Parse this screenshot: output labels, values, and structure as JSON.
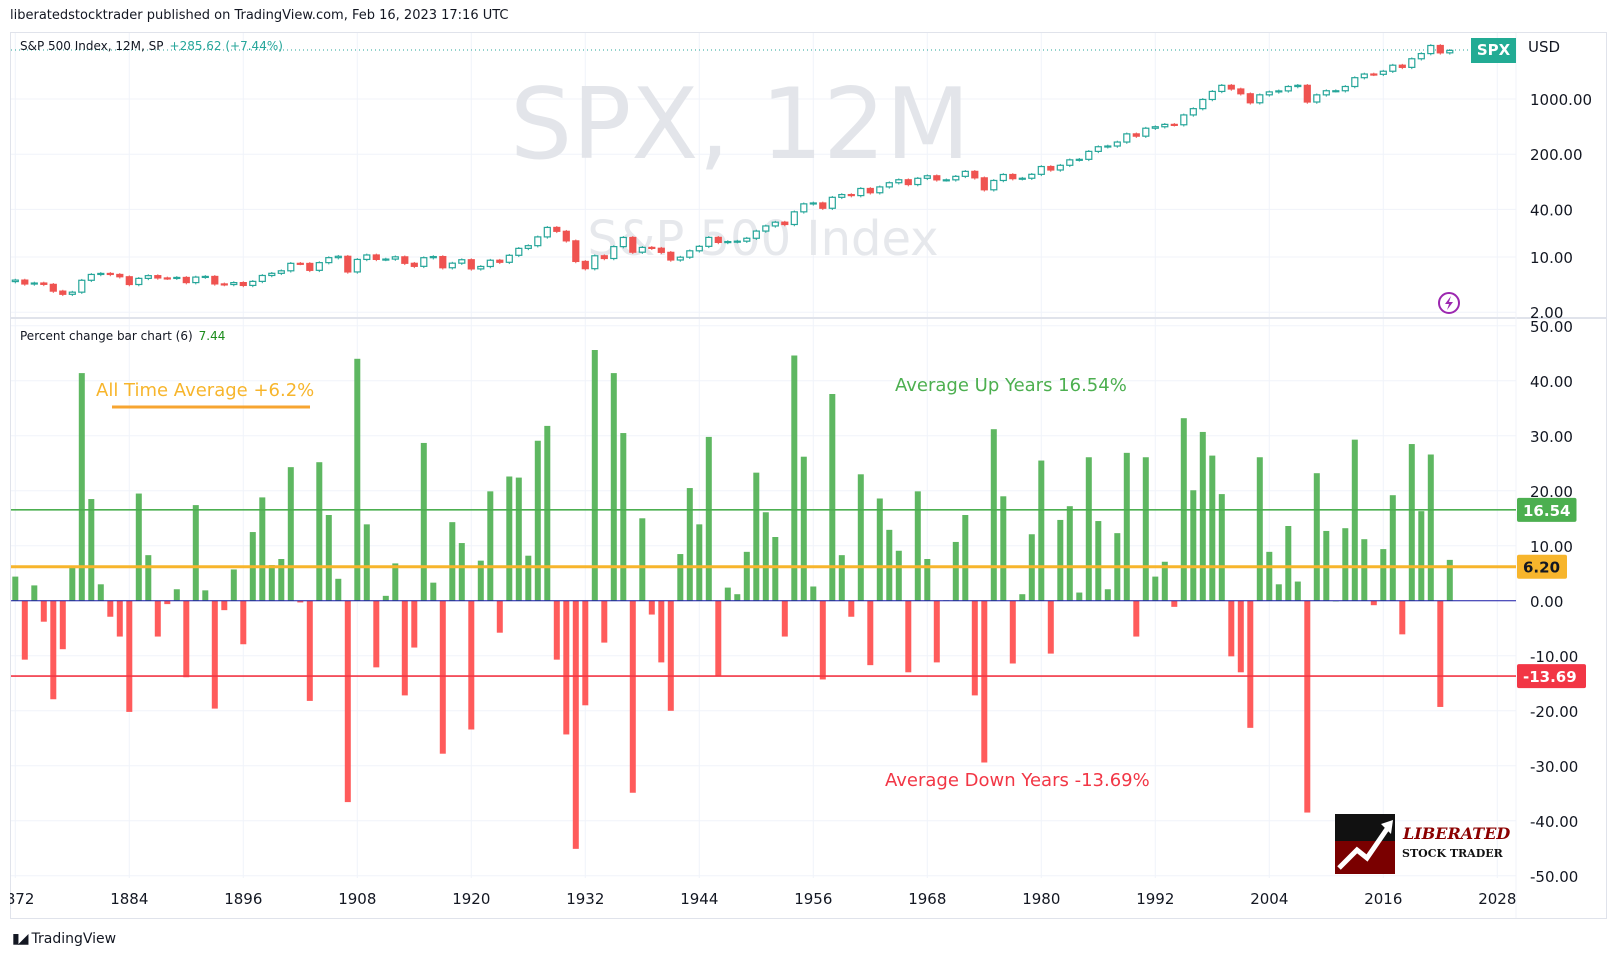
{
  "header": {
    "publisher_line": "liberatedstocktrader published on TradingView.com, Feb 16, 2023 17:16 UTC"
  },
  "legend": {
    "symbol_line": "S&P 500 Index, 12M, SP",
    "change": "+285.62 (+7.44%)",
    "change_value": 285.62,
    "change_pct": 7.44
  },
  "watermark": {
    "symbol": "SPX, 12M",
    "name": "S&P 500 Index"
  },
  "price_axis": {
    "currency": "USD",
    "ticker_badge": "SPX"
  },
  "indicator": {
    "title": "Percent change bar chart (6)",
    "value": "7.44"
  },
  "annotations": {
    "all_time": "All Time Average +6.2%",
    "up": "Average Up Years 16.54%",
    "down": "Average Down Years -13.69%"
  },
  "logo": {
    "line1": "LIBERATED",
    "line2": "STOCK TRADER"
  },
  "footer": {
    "brand": "TradingView"
  },
  "colors": {
    "up_candle": "#26a69a",
    "down_candle": "#ef5350",
    "up_bar": "#4caf50",
    "down_bar": "#ff5252",
    "avg_up": "#4caf50",
    "avg_all": "#f7b52c",
    "avg_down": "#f23645",
    "zero_line": "#1a1aa6",
    "alert_icon": "#9c27b0"
  },
  "chart_data": [
    {
      "type": "candlestick",
      "title": "S&P 500 Index, 12M, SP",
      "yscale": "log",
      "yticks": [
        1000,
        200,
        40,
        10,
        2
      ],
      "ytick_labels": [
        "1000.00",
        "200.00",
        "40.00",
        "10.00",
        "2.00"
      ],
      "grid": true
    },
    {
      "type": "bar",
      "title": "Percent change bar chart (6)",
      "x": [
        1872,
        1873,
        1874,
        1875,
        1876,
        1877,
        1878,
        1879,
        1880,
        1881,
        1882,
        1883,
        1884,
        1885,
        1886,
        1887,
        1888,
        1889,
        1890,
        1891,
        1892,
        1893,
        1894,
        1895,
        1896,
        1897,
        1898,
        1899,
        1900,
        1901,
        1902,
        1903,
        1904,
        1905,
        1906,
        1907,
        1908,
        1909,
        1910,
        1911,
        1912,
        1913,
        1914,
        1915,
        1916,
        1917,
        1918,
        1919,
        1920,
        1921,
        1922,
        1923,
        1924,
        1925,
        1926,
        1927,
        1928,
        1929,
        1930,
        1931,
        1932,
        1933,
        1934,
        1935,
        1936,
        1937,
        1938,
        1939,
        1940,
        1941,
        1942,
        1943,
        1944,
        1945,
        1946,
        1947,
        1948,
        1949,
        1950,
        1951,
        1952,
        1953,
        1954,
        1955,
        1956,
        1957,
        1958,
        1959,
        1960,
        1961,
        1962,
        1963,
        1964,
        1965,
        1966,
        1967,
        1968,
        1969,
        1970,
        1971,
        1972,
        1973,
        1974,
        1975,
        1976,
        1977,
        1978,
        1979,
        1980,
        1981,
        1982,
        1983,
        1984,
        1985,
        1986,
        1987,
        1988,
        1989,
        1990,
        1991,
        1992,
        1993,
        1994,
        1995,
        1996,
        1997,
        1998,
        1999,
        2000,
        2001,
        2002,
        2003,
        2004,
        2005,
        2006,
        2007,
        2008,
        2009,
        2010,
        2011,
        2012,
        2013,
        2014,
        2015,
        2016,
        2017,
        2018,
        2019,
        2020,
        2021,
        2022,
        2023
      ],
      "values": [
        4.4,
        -10.7,
        2.8,
        -3.8,
        -17.9,
        -8.8,
        6.4,
        41.4,
        18.5,
        3.0,
        -2.9,
        -6.5,
        -20.2,
        19.5,
        8.3,
        -6.5,
        -0.6,
        2.1,
        -13.9,
        17.4,
        1.9,
        -19.6,
        -1.7,
        5.7,
        -7.9,
        12.5,
        18.8,
        6.5,
        7.6,
        24.3,
        -0.3,
        -18.2,
        25.2,
        15.6,
        4.0,
        -36.6,
        44.0,
        13.9,
        -12.1,
        0.9,
        6.8,
        -17.2,
        -8.5,
        28.7,
        3.3,
        -27.8,
        14.3,
        10.5,
        -23.4,
        7.3,
        19.9,
        -5.8,
        22.6,
        22.4,
        8.2,
        29.1,
        31.8,
        -10.7,
        -24.3,
        -45.1,
        -19.0,
        45.6,
        -7.6,
        41.4,
        30.5,
        -34.9,
        15.0,
        -2.5,
        -11.2,
        -20.0,
        8.5,
        20.5,
        13.9,
        29.8,
        -13.6,
        2.4,
        1.2,
        8.9,
        23.3,
        16.1,
        11.6,
        -6.5,
        44.6,
        26.2,
        2.6,
        -14.3,
        37.6,
        8.3,
        -2.9,
        23.0,
        -11.7,
        18.6,
        12.9,
        9.1,
        -13.0,
        19.9,
        7.6,
        -11.2,
        0.1,
        10.7,
        15.6,
        -17.2,
        -29.4,
        31.2,
        19.0,
        -11.4,
        1.2,
        12.1,
        25.5,
        -9.6,
        14.7,
        17.2,
        1.5,
        26.1,
        14.5,
        2.1,
        12.3,
        26.9,
        -6.5,
        26.1,
        4.4,
        7.1,
        -1.1,
        33.2,
        20.1,
        30.7,
        26.4,
        19.4,
        -10.1,
        -13.0,
        -23.1,
        26.1,
        8.9,
        3.0,
        13.6,
        3.5,
        -38.5,
        23.2,
        12.7,
        0.0,
        13.2,
        29.3,
        11.2,
        -0.8,
        9.4,
        19.2,
        -6.1,
        28.5,
        16.3,
        26.6,
        -19.3,
        7.44
      ],
      "ylim": [
        -50,
        50
      ],
      "yticks": [
        50,
        40,
        30,
        20,
        10,
        0,
        -10,
        -20,
        -30,
        -40,
        -50
      ],
      "ytick_labels": [
        "50.00",
        "40.00",
        "30.00",
        "20.00",
        "10.00",
        "0.00",
        "-10.00",
        "-20.00",
        "-30.00",
        "-40.00",
        "-50.00"
      ],
      "hlines": [
        {
          "value": 16.54,
          "label": "16.54",
          "color": "#4caf50"
        },
        {
          "value": 6.2,
          "label": "6.20",
          "color": "#f7b52c"
        },
        {
          "value": -13.69,
          "label": "-13.69",
          "color": "#f23645"
        }
      ],
      "xticks": [
        "1872",
        "1884",
        "1896",
        "1908",
        "1920",
        "1932",
        "1944",
        "1956",
        "1968",
        "1980",
        "1992",
        "2004",
        "2016",
        "2028"
      ],
      "grid": true
    }
  ]
}
